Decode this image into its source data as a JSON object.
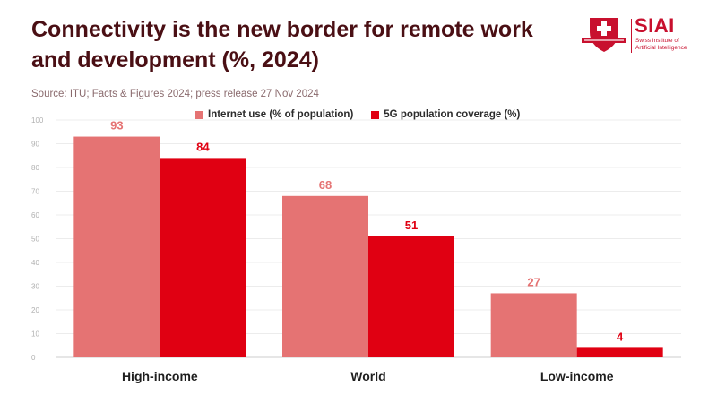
{
  "header": {
    "title": "Connectivity is the new border for remote work and development (%, 2024)",
    "source": "Source: ITU; Facts & Figures 2024; press release 27 Nov 2024"
  },
  "logo": {
    "name": "SIAI",
    "subtitle": "Swiss Institute of Artificial Intelligence",
    "icon": "swiss-cross-shield-icon"
  },
  "chart_data": {
    "type": "bar",
    "title": "Connectivity is the new border for remote work and development (%, 2024)",
    "categories": [
      "High-income",
      "World",
      "Low-income"
    ],
    "series": [
      {
        "name": "Internet use (% of population)",
        "values": [
          93,
          68,
          27
        ],
        "color": "#e57373"
      },
      {
        "name": "5G population coverage (%)",
        "values": [
          84,
          51,
          4
        ],
        "color": "#e00012"
      }
    ],
    "ylim": [
      0,
      100
    ],
    "yticks": [
      0,
      10,
      20,
      30,
      40,
      50,
      60,
      70,
      80,
      90,
      100
    ],
    "grid": true,
    "legend": "top-center",
    "xlabel": "",
    "ylabel": ""
  }
}
